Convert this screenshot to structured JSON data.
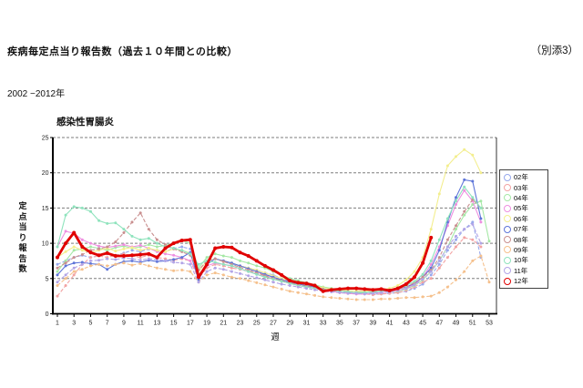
{
  "page": {
    "title": "疾病毎定点当り報告数（過去１０年間との比較）",
    "attachment": "（別添3）",
    "period": "2002 −2012年"
  },
  "chart_data": {
    "type": "line",
    "title": "感染性胃腸炎",
    "xlabel": "週",
    "ylabel": "定点当り報告数",
    "ylim": [
      0,
      25
    ],
    "yticks": [
      0,
      5,
      10,
      15,
      20,
      25
    ],
    "xticks": [
      1,
      3,
      5,
      7,
      9,
      11,
      13,
      15,
      17,
      19,
      21,
      23,
      25,
      27,
      29,
      31,
      33,
      35,
      37,
      39,
      41,
      43,
      45,
      47,
      49,
      51,
      53
    ],
    "x_range": [
      1,
      53
    ],
    "grid": "horizontal-dashed",
    "legend_position": "right",
    "series": [
      {
        "name": "02年",
        "color": "#97a8ec",
        "dashed": true,
        "values": [
          7.0,
          7.5,
          8.0,
          8.3,
          8.0,
          8.2,
          8.5,
          8.3,
          8.6,
          9.0,
          8.8,
          9.2,
          9.0,
          8.8,
          9.3,
          9.5,
          9.2,
          6.0,
          7.5,
          7.8,
          7.5,
          7.0,
          6.8,
          6.5,
          6.2,
          5.8,
          5.5,
          5.0,
          4.6,
          4.3,
          4.0,
          3.8,
          3.5,
          3.3,
          3.2,
          3.0,
          3.0,
          2.9,
          2.8,
          2.8,
          2.9,
          3.0,
          3.2,
          3.6,
          4.2,
          5.5,
          7.0,
          9.0,
          10.5,
          12.0,
          13.0,
          8.0
        ]
      },
      {
        "name": "03年",
        "color": "#f2a3a3",
        "dashed": true,
        "values": [
          2.5,
          4.0,
          5.5,
          7.0,
          8.0,
          8.2,
          8.0,
          8.3,
          8.5,
          8.2,
          8.0,
          8.3,
          8.0,
          7.8,
          7.6,
          7.8,
          7.5,
          5.0,
          6.5,
          7.0,
          6.8,
          6.5,
          6.3,
          6.0,
          5.8,
          5.5,
          5.2,
          4.8,
          4.5,
          4.2,
          4.0,
          3.8,
          3.5,
          3.2,
          3.0,
          2.9,
          2.8,
          2.8,
          2.7,
          2.8,
          2.9,
          3.0,
          3.3,
          3.8,
          4.5,
          5.0,
          6.5,
          8.0,
          9.5,
          10.8,
          10.5,
          9.5
        ]
      },
      {
        "name": "04年",
        "color": "#a5e8a5",
        "dashed": false,
        "values": [
          6.0,
          7.5,
          9.0,
          9.2,
          9.5,
          9.3,
          9.0,
          9.4,
          9.6,
          9.3,
          9.5,
          9.8,
          9.5,
          9.7,
          10.0,
          10.4,
          10.0,
          6.5,
          8.0,
          8.5,
          8.2,
          8.0,
          7.5,
          7.2,
          6.8,
          6.5,
          6.0,
          5.5,
          5.0,
          4.7,
          4.4,
          4.1,
          3.8,
          3.6,
          3.4,
          3.3,
          3.2,
          3.1,
          3.0,
          3.0,
          3.1,
          3.2,
          3.5,
          4.0,
          4.8,
          6.0,
          7.5,
          9.5,
          12.0,
          14.0,
          15.5,
          16.0,
          10.3
        ]
      },
      {
        "name": "05年",
        "color": "#ee8fe0",
        "dashed": false,
        "values": [
          9.5,
          11.7,
          11.4,
          10.5,
          10.0,
          9.6,
          9.4,
          9.6,
          9.8,
          9.5,
          9.7,
          9.3,
          8.8,
          8.5,
          8.3,
          8.0,
          7.5,
          5.5,
          6.8,
          7.2,
          7.0,
          6.8,
          6.4,
          6.0,
          5.6,
          5.3,
          5.0,
          4.6,
          4.3,
          4.0,
          3.8,
          3.6,
          3.4,
          3.2,
          3.0,
          2.9,
          2.8,
          2.8,
          2.9,
          3.0,
          3.1,
          3.3,
          3.6,
          4.2,
          5.2,
          7.0,
          9.5,
          12.5,
          15.5,
          17.5,
          16.0,
          13.0
        ]
      },
      {
        "name": "06年",
        "color": "#f3ee8e",
        "dashed": false,
        "values": [
          8.0,
          8.8,
          9.5,
          9.0,
          8.7,
          9.0,
          9.3,
          8.9,
          9.2,
          9.4,
          9.0,
          9.3,
          9.0,
          8.8,
          9.2,
          9.0,
          8.6,
          6.0,
          7.5,
          7.8,
          7.5,
          7.2,
          6.8,
          6.5,
          6.2,
          5.8,
          5.4,
          5.0,
          4.7,
          4.4,
          4.1,
          3.9,
          3.7,
          3.5,
          3.4,
          3.3,
          3.2,
          3.2,
          3.3,
          3.4,
          3.6,
          4.0,
          4.8,
          6.0,
          8.0,
          12.0,
          17.0,
          21.0,
          22.3,
          23.3,
          22.5,
          20.0
        ]
      },
      {
        "name": "07年",
        "color": "#5d74d8",
        "dashed": false,
        "values": [
          5.5,
          6.8,
          7.2,
          7.3,
          7.1,
          7.0,
          6.3,
          7.0,
          7.4,
          7.5,
          7.3,
          7.6,
          7.4,
          7.5,
          7.7,
          8.0,
          8.7,
          4.8,
          7.0,
          7.8,
          7.5,
          7.2,
          6.8,
          6.4,
          6.0,
          5.6,
          5.2,
          4.8,
          4.5,
          4.2,
          4.0,
          3.8,
          3.5,
          3.3,
          3.2,
          3.1,
          3.0,
          3.0,
          3.1,
          3.2,
          3.3,
          3.5,
          3.8,
          4.3,
          5.2,
          6.5,
          9.0,
          13.0,
          16.5,
          19.0,
          18.8,
          13.5
        ]
      },
      {
        "name": "08年",
        "color": "#c98f8f",
        "dashed": true,
        "values": [
          6.5,
          7.2,
          8.0,
          8.4,
          9.0,
          9.2,
          9.5,
          10.2,
          11.5,
          13.0,
          14.3,
          12.0,
          10.5,
          9.8,
          9.2,
          8.8,
          8.3,
          6.2,
          7.5,
          7.8,
          7.4,
          7.0,
          6.6,
          6.2,
          5.8,
          5.4,
          5.0,
          4.7,
          4.4,
          4.1,
          3.9,
          3.7,
          3.5,
          3.3,
          3.2,
          3.1,
          3.0,
          3.0,
          3.1,
          3.2,
          3.3,
          3.5,
          3.8,
          4.4,
          5.2,
          6.2,
          8.0,
          10.5,
          12.5,
          14.5,
          16.2,
          15.0
        ]
      },
      {
        "name": "09年",
        "color": "#f5c08c",
        "dashed": true,
        "values": [
          4.0,
          5.0,
          6.0,
          6.3,
          6.8,
          7.0,
          6.8,
          7.0,
          7.2,
          6.9,
          7.1,
          6.8,
          6.5,
          6.3,
          6.1,
          6.2,
          6.0,
          4.5,
          5.5,
          5.8,
          5.5,
          5.2,
          5.0,
          4.7,
          4.4,
          4.1,
          3.8,
          3.5,
          3.2,
          3.0,
          2.8,
          2.6,
          2.4,
          2.3,
          2.2,
          2.1,
          2.0,
          2.0,
          2.0,
          2.1,
          2.1,
          2.2,
          2.3,
          2.3,
          2.4,
          2.5,
          3.0,
          3.8,
          4.8,
          6.0,
          7.5,
          8.2,
          4.5
        ]
      },
      {
        "name": "10年",
        "color": "#8fe3bd",
        "dashed": false,
        "values": [
          9.5,
          14.0,
          15.2,
          15.0,
          14.5,
          13.2,
          12.8,
          12.9,
          12.0,
          11.0,
          10.5,
          10.7,
          10.0,
          9.5,
          9.3,
          9.0,
          8.5,
          7.0,
          7.5,
          7.3,
          7.0,
          6.8,
          6.4,
          6.0,
          5.6,
          5.2,
          4.9,
          4.6,
          4.3,
          4.0,
          3.8,
          3.6,
          3.4,
          3.3,
          3.2,
          3.1,
          3.0,
          3.0,
          3.1,
          3.2,
          3.4,
          3.6,
          4.0,
          4.6,
          5.6,
          7.5,
          10.5,
          13.5,
          16.0,
          18.0,
          16.5,
          15.0
        ]
      },
      {
        "name": "11年",
        "color": "#b2a4e6",
        "dashed": true,
        "values": [
          4.5,
          5.5,
          6.5,
          7.0,
          7.5,
          7.6,
          7.8,
          7.7,
          7.9,
          7.8,
          7.6,
          7.8,
          7.7,
          7.5,
          7.3,
          7.2,
          7.0,
          4.5,
          6.0,
          6.5,
          6.3,
          6.0,
          5.7,
          5.4,
          5.1,
          4.8,
          4.5,
          4.2,
          4.0,
          3.8,
          3.6,
          3.4,
          3.2,
          3.1,
          3.0,
          2.9,
          2.9,
          2.8,
          2.9,
          3.0,
          3.1,
          3.3,
          3.6,
          4.1,
          4.9,
          6.0,
          7.5,
          9.5,
          11.0,
          12.0,
          12.7,
          10.0
        ]
      },
      {
        "name": "12年",
        "color": "#e00000",
        "dashed": false,
        "bold": true,
        "values": [
          8.0,
          10.0,
          11.5,
          9.5,
          8.7,
          8.3,
          8.6,
          8.2,
          8.2,
          8.3,
          8.4,
          8.5,
          8.0,
          9.3,
          10.0,
          10.4,
          10.5,
          5.2,
          7.0,
          9.3,
          9.5,
          9.4,
          8.7,
          8.2,
          7.5,
          6.8,
          6.2,
          5.5,
          4.7,
          4.4,
          4.3,
          4.0,
          3.2,
          3.4,
          3.5,
          3.6,
          3.6,
          3.5,
          3.4,
          3.5,
          3.3,
          3.6,
          4.2,
          5.2,
          7.2,
          10.8
        ]
      }
    ]
  }
}
